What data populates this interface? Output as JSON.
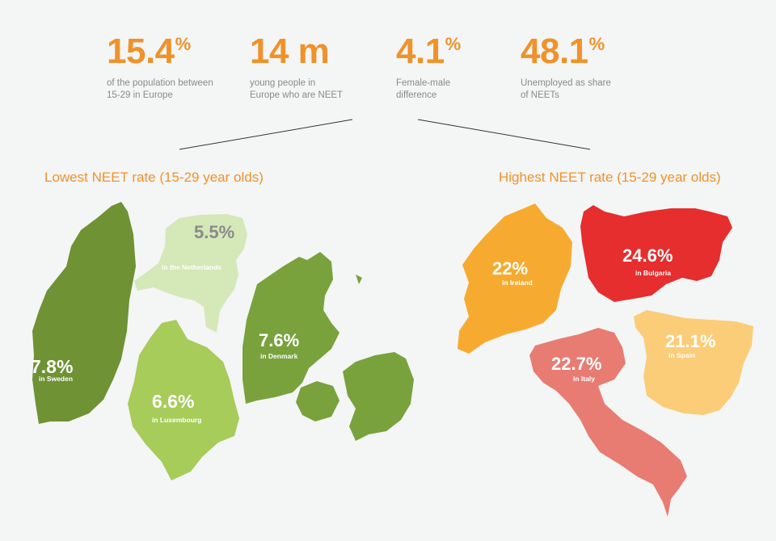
{
  "stats": [
    {
      "value": "15.4",
      "unit": "%",
      "desc": "of the population between\n15-29 in Europe"
    },
    {
      "value": "14 m",
      "unit": "",
      "desc": "young people in\nEurope who are NEET"
    },
    {
      "value": "4.1",
      "unit": "%",
      "desc": "Female-male\ndifference"
    },
    {
      "value": "48.1",
      "unit": "%",
      "desc": "Unemployed as share\nof NEETs"
    }
  ],
  "sections": {
    "lowest": "Lowest NEET rate (15-29  year olds)",
    "highest": "Highest NEET rate (15-29  year olds)"
  },
  "chart_data": {
    "type": "bar",
    "title": "",
    "categories": [
      "Sweden",
      "Netherlands",
      "Luxembourg",
      "Denmark",
      "Ireland",
      "Bulgaria",
      "Italy",
      "Spain"
    ],
    "series": [
      {
        "values": [
          7.8,
          5.5,
          6.6,
          7.6,
          22,
          24.6,
          22.7,
          21.1
        ]
      }
    ],
    "labels": [
      {
        "pct": "7.8%",
        "caption": "in Sweden"
      },
      {
        "pct": "5.5%",
        "caption": "in the Netherlands"
      },
      {
        "pct": "6.6%",
        "caption": "in Luxembourg"
      },
      {
        "pct": "7.6%",
        "caption": "in Denmark"
      },
      {
        "pct": "22%",
        "caption": "in Ireland"
      },
      {
        "pct": "24.6%",
        "caption": "in Bulgaria"
      },
      {
        "pct": "22.7%",
        "caption": "in Italy"
      },
      {
        "pct": "21.1%",
        "caption": "in Spain"
      }
    ],
    "colors": {
      "Sweden": "#6e9234",
      "Netherlands": "#d5e8b8",
      "Luxembourg": "#a7cc5a",
      "Denmark": "#79a23c",
      "Ireland": "#f6ab30",
      "Bulgaria": "#e52e2d",
      "Italy": "#e87c72",
      "Spain": "#fbcd78"
    }
  }
}
